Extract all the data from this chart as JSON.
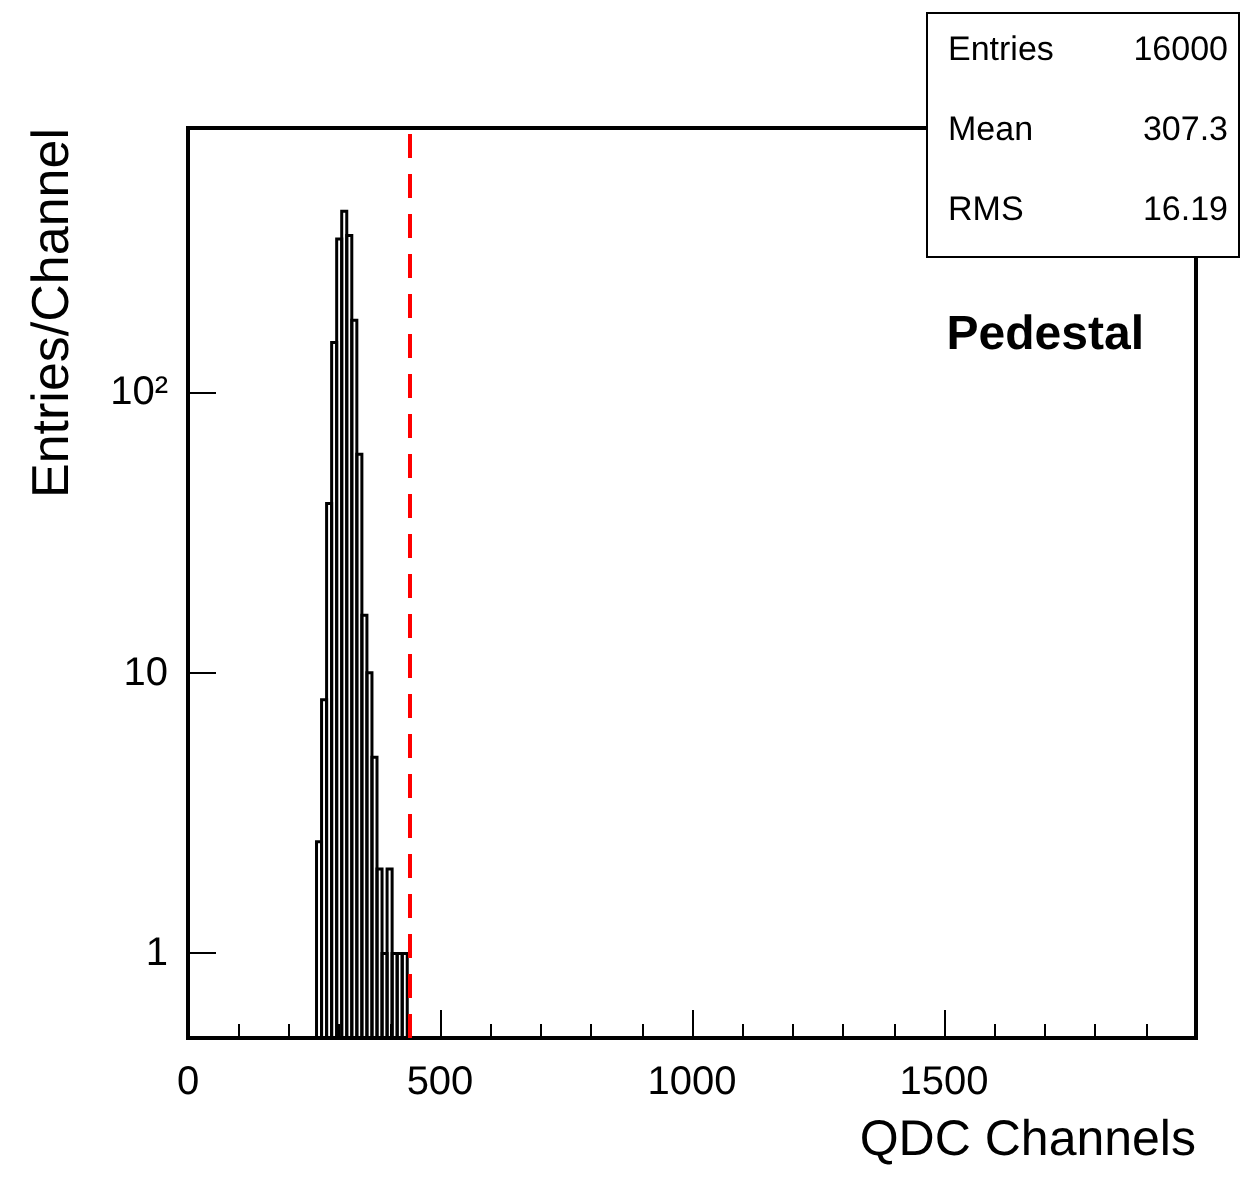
{
  "chart_data": {
    "type": "histogram",
    "xlabel": "QDC Channels",
    "ylabel": "Entries/Channel",
    "bins": [
      255,
      265,
      275,
      285,
      295,
      305,
      315,
      325,
      335,
      345,
      355,
      365,
      375,
      385,
      395,
      405,
      415,
      425,
      435
    ],
    "values": [
      2.5,
      8,
      40,
      150,
      350,
      440,
      360,
      180,
      60,
      16,
      10,
      5,
      2,
      1,
      2,
      1,
      1,
      1
    ],
    "color": "#000000",
    "xlim": [
      0,
      2000
    ],
    "xticks": [
      0,
      500,
      1000,
      1500
    ],
    "ylim": [
      0.5,
      870
    ],
    "yticks": [
      1,
      10,
      {
        "value": 100,
        "label": "10²"
      }
    ],
    "log": "y",
    "grid": false,
    "ref_lines": [
      {
        "axis": "x",
        "value": 440,
        "color": "#ff0000",
        "line_style": "dashed"
      }
    ],
    "annotations": [
      "Entries",
      "16000",
      "Mean",
      "307.3",
      "RMS",
      "16.19",
      "Pedestal"
    ]
  }
}
